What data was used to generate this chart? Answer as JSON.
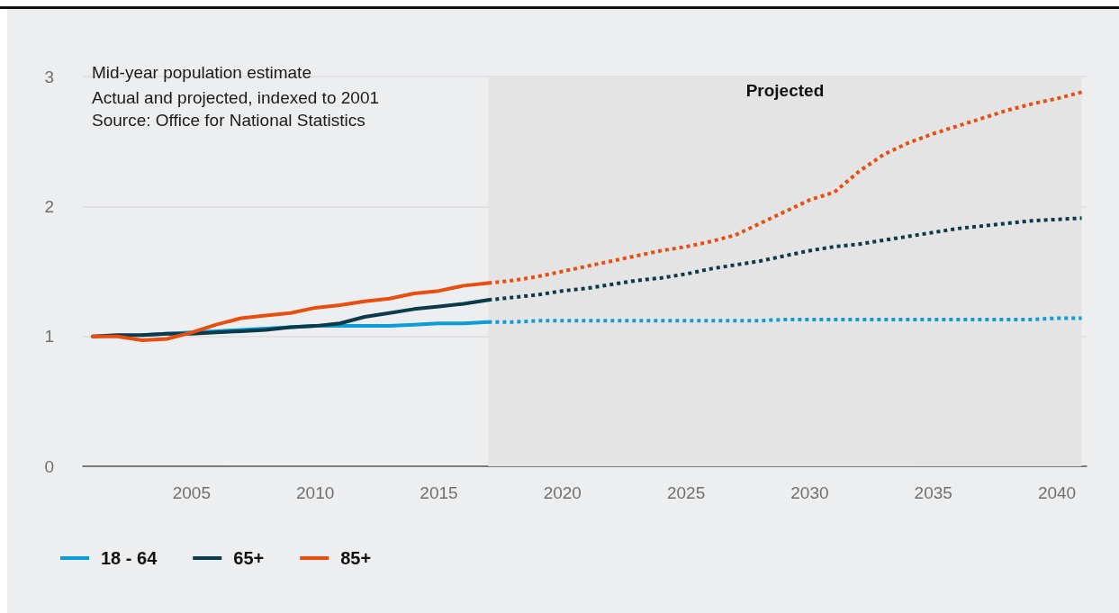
{
  "chart_data": {
    "type": "line",
    "title": "Mid-year population estimate",
    "subtitle": "Actual and projected, indexed to 2001",
    "annotations": [
      "Source: Office for National Statistics"
    ],
    "series": [
      {
        "name": "18 - 64",
        "color": "#0a9dd8",
        "line_style": "solid",
        "x": [
          2003,
          2004,
          2005,
          2006,
          2007,
          2008,
          2009,
          2010,
          2011,
          2012,
          2013,
          2014,
          2015,
          2016,
          2017
        ],
        "values": [
          1.01,
          1.02,
          1.03,
          1.04,
          1.05,
          1.06,
          1.07,
          1.08,
          1.08,
          1.08,
          1.08,
          1.09,
          1.1,
          1.1,
          1.11
        ]
      },
      {
        "name": "65+",
        "color": "#0b3b4a",
        "line_style": "solid",
        "x": [
          2001,
          2002,
          2003,
          2004,
          2005,
          2006,
          2007,
          2008,
          2009,
          2010,
          2011,
          2012,
          2013,
          2014,
          2015,
          2016,
          2017
        ],
        "values": [
          1.0,
          1.01,
          1.01,
          1.02,
          1.02,
          1.03,
          1.04,
          1.05,
          1.07,
          1.08,
          1.1,
          1.15,
          1.18,
          1.21,
          1.23,
          1.25,
          1.28
        ]
      },
      {
        "name": "85+",
        "color": "#e84e0f",
        "line_style": "solid",
        "x": [
          2001,
          2002,
          2003,
          2004,
          2005,
          2006,
          2007,
          2008,
          2009,
          2010,
          2011,
          2012,
          2013,
          2014,
          2015,
          2016,
          2017
        ],
        "values": [
          1.0,
          1.0,
          0.97,
          0.98,
          1.03,
          1.09,
          1.14,
          1.16,
          1.18,
          1.22,
          1.24,
          1.27,
          1.29,
          1.33,
          1.35,
          1.39,
          1.41
        ]
      },
      {
        "color": "#0a9dd8",
        "line_style": "dotted",
        "x": [
          2017,
          2018,
          2019,
          2020,
          2021,
          2022,
          2023,
          2024,
          2025,
          2026,
          2027,
          2028,
          2029,
          2030,
          2031,
          2032,
          2033,
          2034,
          2035,
          2036,
          2037,
          2038,
          2039,
          2040,
          2041
        ],
        "values": [
          1.11,
          1.11,
          1.12,
          1.12,
          1.12,
          1.12,
          1.12,
          1.12,
          1.12,
          1.12,
          1.12,
          1.12,
          1.13,
          1.13,
          1.13,
          1.13,
          1.13,
          1.13,
          1.13,
          1.13,
          1.13,
          1.13,
          1.13,
          1.14,
          1.14
        ]
      },
      {
        "color": "#0b3b4a",
        "line_style": "dotted",
        "x": [
          2017,
          2018,
          2019,
          2020,
          2021,
          2022,
          2023,
          2024,
          2025,
          2026,
          2027,
          2028,
          2029,
          2030,
          2031,
          2032,
          2033,
          2034,
          2035,
          2036,
          2037,
          2038,
          2039,
          2040,
          2041
        ],
        "values": [
          1.28,
          1.3,
          1.32,
          1.35,
          1.37,
          1.4,
          1.43,
          1.45,
          1.48,
          1.52,
          1.55,
          1.58,
          1.62,
          1.66,
          1.69,
          1.71,
          1.74,
          1.77,
          1.8,
          1.83,
          1.85,
          1.87,
          1.89,
          1.9,
          1.91
        ]
      },
      {
        "color": "#e84e0f",
        "line_style": "dotted",
        "x": [
          2017,
          2018,
          2019,
          2020,
          2021,
          2022,
          2023,
          2024,
          2025,
          2026,
          2027,
          2028,
          2029,
          2030,
          2031,
          2032,
          2033,
          2034,
          2035,
          2036,
          2037,
          2038,
          2039,
          2040,
          2041
        ],
        "values": [
          1.41,
          1.43,
          1.46,
          1.5,
          1.54,
          1.58,
          1.62,
          1.66,
          1.69,
          1.73,
          1.78,
          1.87,
          1.96,
          2.05,
          2.11,
          2.27,
          2.4,
          2.49,
          2.56,
          2.62,
          2.68,
          2.74,
          2.79,
          2.83,
          2.88
        ]
      }
    ],
    "xlim": [
      2000.6,
      2041.2
    ],
    "xticks": [
      2005,
      2010,
      2015,
      2020,
      2025,
      2030,
      2035,
      2040
    ],
    "ylim": [
      0,
      3
    ],
    "yticks": [
      0,
      1,
      2,
      3
    ],
    "bands": [
      {
        "axis": "x",
        "from": 2017,
        "to": 2041,
        "label": "Projected",
        "color": "#e4e4e4"
      }
    ],
    "grid": "y",
    "legend": "bottom left",
    "marker": "none"
  }
}
